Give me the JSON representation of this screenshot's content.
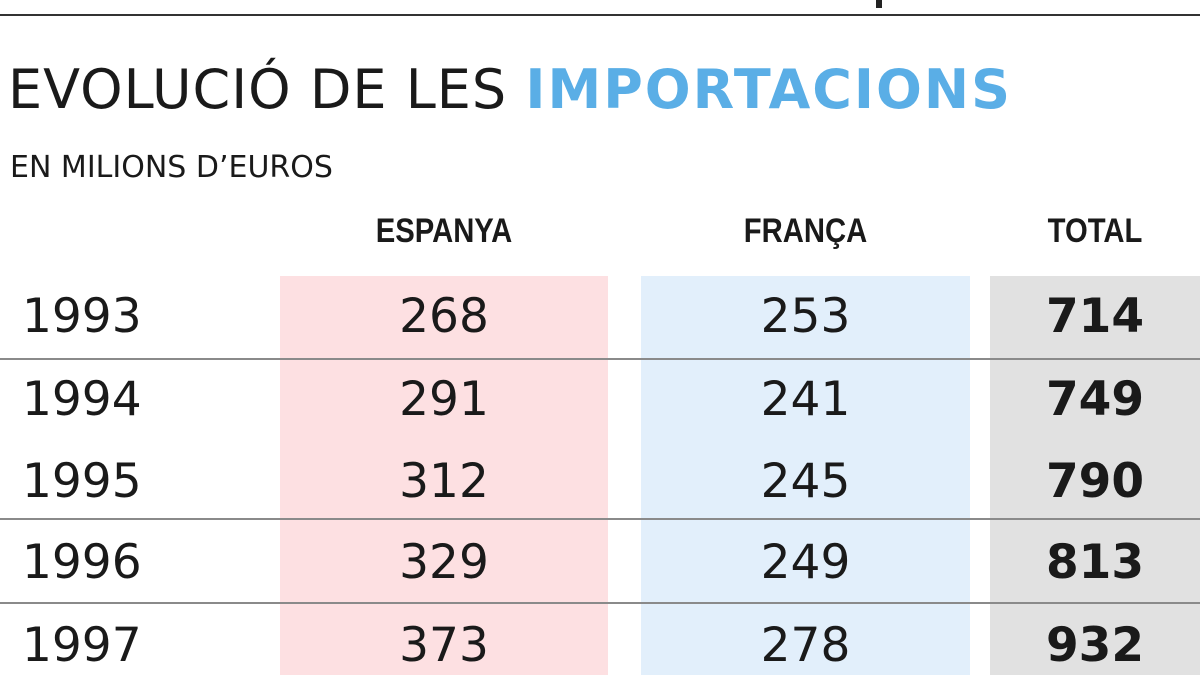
{
  "title": {
    "prefix": "EVOLUCIÓ DE LES",
    "highlight": "IMPORTACIONS"
  },
  "subtitle": "EN MILIONS D’EUROS",
  "colors": {
    "highlight": "#5aaee6",
    "espanya_band": "#fde0e2",
    "franca_band": "#e2effb",
    "total_band": "#e1e1e1",
    "text": "#1a1a1a"
  },
  "chart_data": {
    "type": "table",
    "columns": [
      "",
      "ESPANYA",
      "FRANÇA",
      "TOTAL"
    ],
    "rows": [
      {
        "year": "1993",
        "espanya": "268",
        "franca": "253",
        "total": "714"
      },
      {
        "year": "1994",
        "espanya": "291",
        "franca": "241",
        "total": "749"
      },
      {
        "year": "1995",
        "espanya": "312",
        "franca": "245",
        "total": "790"
      },
      {
        "year": "1996",
        "espanya": "329",
        "franca": "249",
        "total": "813"
      },
      {
        "year": "1997",
        "espanya": "373",
        "franca": "278",
        "total": "932"
      }
    ]
  }
}
